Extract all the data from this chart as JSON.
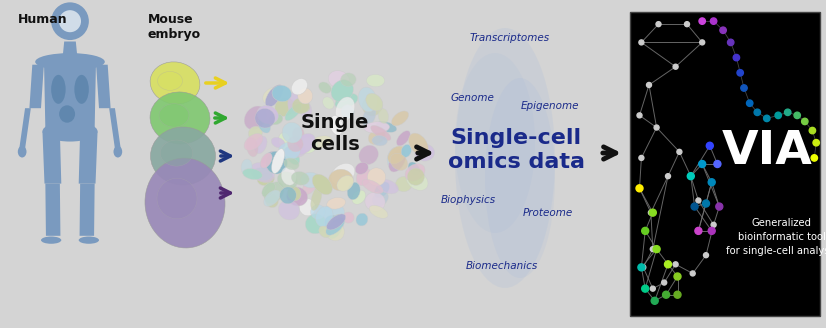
{
  "bg_color": "#d4d4d4",
  "fig_width": 8.26,
  "fig_height": 3.28,
  "human_color": "#7a9abf",
  "human_organ_color": "#5580a8",
  "human_label": "Human",
  "mouse_label": "Mouse\nembryo",
  "embryo_colors": [
    "#d8e060",
    "#80c870",
    "#80a898",
    "#9888b8"
  ],
  "embryo_arrow_colors": [
    "#e8d020",
    "#30a830",
    "#203880",
    "#502870"
  ],
  "single_cells_label": "Single\ncells",
  "omics_title": "Single-cell\nomics data",
  "omics_title_color": "#1a2a8a",
  "omics_labels": [
    "Transcriptomes",
    "Genome",
    "Epigenome",
    "Biophysics",
    "Proteome",
    "Biomechanics"
  ],
  "omics_label_color": "#1a2a8a",
  "via_bg": "#000000",
  "via_text": "VIA",
  "via_subtitle": "Generalized\nbioinformatic tool\nfor single-cell analysis",
  "cell_colors": [
    "#c8a8c8",
    "#a8a8d0",
    "#b8c8d8",
    "#c8d0a8",
    "#d8c8a8",
    "#b8d0b8",
    "#a8d8c8",
    "#d0d8b8",
    "#d8b8c8",
    "#e8d8c8",
    "#f0f0f0",
    "#d8e8c8",
    "#b8d8e8",
    "#98c8d8",
    "#88b8c8",
    "#e0d0e0",
    "#d0c0e0",
    "#c0d8e0",
    "#e0e0c0",
    "#e0c0d0"
  ]
}
